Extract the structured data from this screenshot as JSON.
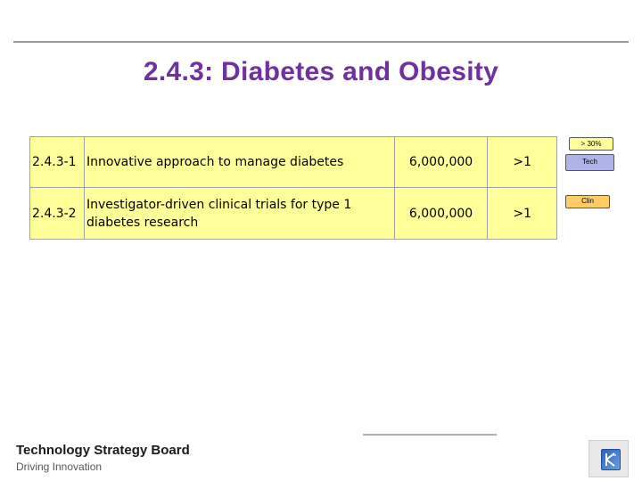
{
  "slide": {
    "title": "2.4.3:  Diabetes and Obesity"
  },
  "projects": [
    {
      "code": "2.4.3-1",
      "description": "Innovative approach to manage diabetes",
      "amount": "6,000,000",
      "ratio": ">1"
    },
    {
      "code": "2.4.3-2",
      "description": "Investigator-driven clinical trials for type 1 diabetes research",
      "amount": "6,000,000",
      "ratio": ">1"
    }
  ],
  "tags": {
    "percent": "> 30%",
    "tech": "Tech",
    "clin": "Clin"
  },
  "footer": {
    "org": "Technology Strategy Board",
    "tagline": "Driving Innovation"
  },
  "colors": {
    "title": "#7030a0",
    "table_fill": "#ffff99",
    "tech_tag": "#aeb4e8",
    "clin_tag": "#ffcc66"
  },
  "icons": {
    "logo": "tsb-logo-icon"
  }
}
